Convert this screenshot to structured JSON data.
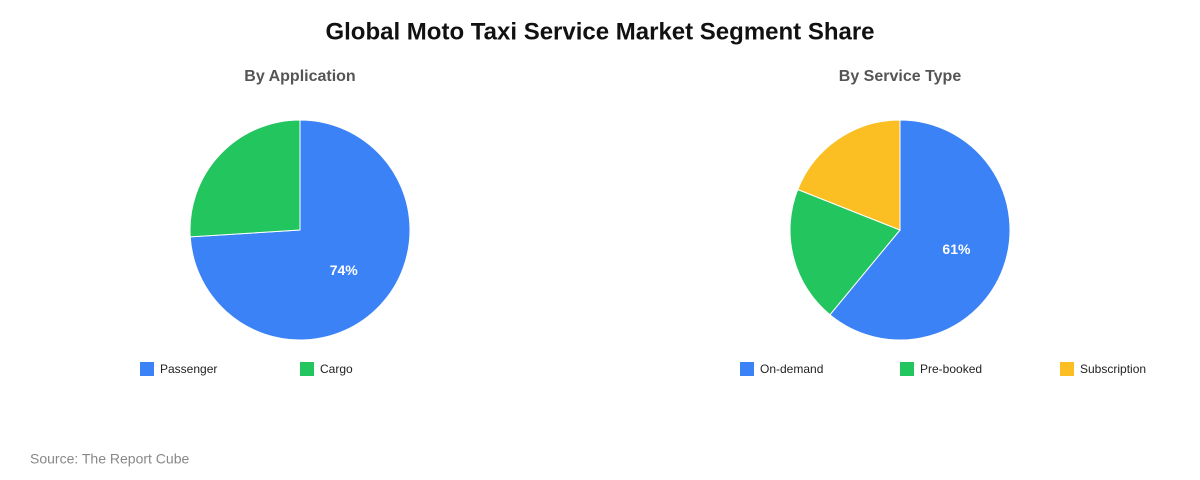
{
  "title": "Global Moto Taxi Service Market Segment Share",
  "source": "Source: The Report Cube",
  "chart_data": [
    {
      "type": "pie",
      "title": "By Application",
      "categories": [
        "Passenger",
        "Cargo"
      ],
      "values": [
        74,
        26
      ],
      "value_labels": [
        "74%",
        null
      ],
      "colors": [
        "#3b82f6",
        "#22c55e"
      ]
    },
    {
      "type": "pie",
      "title": "By Service Type",
      "categories": [
        "On-demand",
        "Pre-booked",
        "Subscription"
      ],
      "values": [
        61,
        20,
        19
      ],
      "value_labels": [
        "61%",
        null,
        null
      ],
      "colors": [
        "#3b82f6",
        "#22c55e",
        "#fbbf24"
      ]
    }
  ]
}
